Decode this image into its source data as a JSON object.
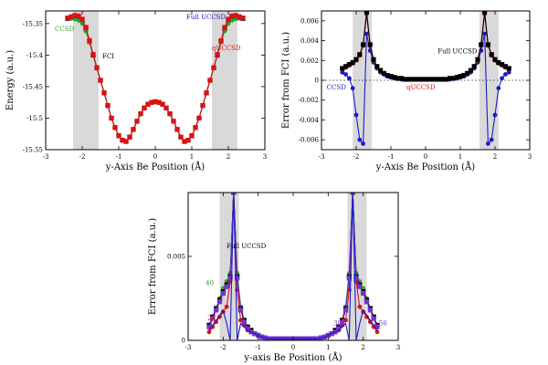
{
  "chart_data": [
    {
      "id": "a",
      "type": "line",
      "xlabel": "y-Axis Be Position (Å)",
      "ylabel": "Energy (a.u.)",
      "xlim": [
        -3,
        3
      ],
      "ylim": [
        -15.55,
        -15.33
      ],
      "xticks": [
        -3,
        -2,
        -1,
        0,
        1,
        2,
        3
      ],
      "yticks": [
        -15.55,
        -15.5,
        -15.45,
        -15.4,
        -15.35
      ],
      "ytick_labels": [
        "-15.55",
        "-15.5",
        "-15.45",
        "-15.4",
        "-15.35"
      ],
      "shaded_x": [
        [
          -2.25,
          -1.55
        ],
        [
          1.55,
          2.25
        ]
      ],
      "x": [
        -2.4,
        -2.3,
        -2.2,
        -2.1,
        -2.0,
        -1.9,
        -1.8,
        -1.7,
        -1.6,
        -1.5,
        -1.4,
        -1.3,
        -1.2,
        -1.1,
        -1.0,
        -0.9,
        -0.8,
        -0.7,
        -0.6,
        -0.5,
        -0.4,
        -0.3,
        -0.2,
        -0.1,
        0.0,
        0.1,
        0.2,
        0.3,
        0.4,
        0.5,
        0.6,
        0.7,
        0.8,
        0.9,
        1.0,
        1.1,
        1.2,
        1.3,
        1.4,
        1.5,
        1.6,
        1.7,
        1.8,
        1.9,
        2.0,
        2.1,
        2.2,
        2.3,
        2.4
      ],
      "series": [
        {
          "name": "FCI",
          "color": "#000000",
          "marker": "square",
          "values": [
            -15.342,
            -15.34,
            -15.338,
            -15.339,
            -15.345,
            -15.358,
            -15.378,
            -15.4,
            -15.42,
            -15.44,
            -15.46,
            -15.48,
            -15.5,
            -15.515,
            -15.528,
            -15.535,
            -15.537,
            -15.53,
            -15.518,
            -15.505,
            -15.493,
            -15.484,
            -15.478,
            -15.475,
            -15.474,
            -15.475,
            -15.478,
            -15.484,
            -15.493,
            -15.505,
            -15.518,
            -15.53,
            -15.537,
            -15.535,
            -15.528,
            -15.515,
            -15.5,
            -15.48,
            -15.46,
            -15.44,
            -15.42,
            -15.4,
            -15.378,
            -15.358,
            -15.345,
            -15.339,
            -15.338,
            -15.34,
            -15.342
          ]
        },
        {
          "name": "CCSD",
          "color": "#22aa22",
          "marker": "circle",
          "values": [
            -15.342,
            -15.342,
            -15.343,
            -15.345,
            -15.35,
            -15.362,
            -15.38,
            -15.4,
            -15.42,
            -15.44,
            -15.46,
            -15.48,
            -15.5,
            -15.515,
            -15.528,
            -15.535,
            -15.537,
            -15.53,
            -15.518,
            -15.505,
            -15.493,
            -15.484,
            -15.478,
            -15.475,
            -15.474,
            -15.475,
            -15.478,
            -15.484,
            -15.493,
            -15.505,
            -15.518,
            -15.53,
            -15.537,
            -15.535,
            -15.528,
            -15.515,
            -15.5,
            -15.48,
            -15.46,
            -15.44,
            -15.42,
            -15.4,
            -15.38,
            -15.362,
            -15.35,
            -15.345,
            -15.343,
            -15.342,
            -15.342
          ]
        },
        {
          "name": "Full UCCSD",
          "color": "#1a1acc",
          "marker": "circle",
          "values": [
            -15.342,
            -15.34,
            -15.338,
            -15.339,
            -15.344,
            -15.356,
            -15.377,
            -15.4,
            -15.42,
            -15.44,
            -15.46,
            -15.48,
            -15.5,
            -15.515,
            -15.528,
            -15.535,
            -15.537,
            -15.53,
            -15.518,
            -15.505,
            -15.493,
            -15.484,
            -15.478,
            -15.475,
            -15.474,
            -15.475,
            -15.478,
            -15.484,
            -15.493,
            -15.505,
            -15.518,
            -15.53,
            -15.537,
            -15.535,
            -15.528,
            -15.515,
            -15.5,
            -15.48,
            -15.46,
            -15.44,
            -15.42,
            -15.4,
            -15.377,
            -15.356,
            -15.344,
            -15.339,
            -15.338,
            -15.34,
            -15.342
          ]
        },
        {
          "name": "qUCCSD",
          "color": "#dd1111",
          "marker": "square",
          "values": [
            -15.341,
            -15.339,
            -15.337,
            -15.338,
            -15.343,
            -15.356,
            -15.377,
            -15.399,
            -15.42,
            -15.44,
            -15.46,
            -15.48,
            -15.5,
            -15.515,
            -15.528,
            -15.535,
            -15.537,
            -15.53,
            -15.518,
            -15.505,
            -15.493,
            -15.484,
            -15.478,
            -15.475,
            -15.474,
            -15.475,
            -15.478,
            -15.484,
            -15.493,
            -15.505,
            -15.518,
            -15.53,
            -15.537,
            -15.535,
            -15.528,
            -15.515,
            -15.5,
            -15.48,
            -15.46,
            -15.44,
            -15.42,
            -15.399,
            -15.377,
            -15.356,
            -15.343,
            -15.338,
            -15.337,
            -15.339,
            -15.341
          ]
        }
      ],
      "annotations": [
        {
          "text": "CCSD",
          "color": "#22aa22",
          "x": -2.75,
          "y": -15.362
        },
        {
          "text": "FCI",
          "color": "#000000",
          "x": -1.45,
          "y": -15.405
        },
        {
          "text": "Full UCCSD",
          "color": "#1a1acc",
          "x": 0.85,
          "y": -15.343
        },
        {
          "text": "qUCCSD",
          "color": "#dd1111",
          "x": 1.55,
          "y": -15.392
        }
      ]
    },
    {
      "id": "b",
      "type": "line",
      "xlabel": "y-Axis Be Position (Å)",
      "ylabel": "Error from FCI (a.u.)",
      "xlim": [
        -3,
        3
      ],
      "ylim": [
        -0.007,
        0.007
      ],
      "xticks": [
        -3,
        -2,
        -1,
        0,
        1,
        2,
        3
      ],
      "yticks": [
        -0.006,
        -0.004,
        -0.002,
        0,
        0.002,
        0.004,
        0.006
      ],
      "ytick_labels": [
        "-0.006",
        "-0.004",
        "-0.002",
        "0",
        "0.002",
        "0.004",
        "0.006"
      ],
      "shaded_x": [
        [
          -2.1,
          -1.55
        ],
        [
          1.55,
          2.1
        ]
      ],
      "x": [
        -2.4,
        -2.3,
        -2.2,
        -2.1,
        -2.0,
        -1.9,
        -1.8,
        -1.7,
        -1.6,
        -1.5,
        -1.4,
        -1.3,
        -1.2,
        -1.1,
        -1.0,
        -0.9,
        -0.8,
        -0.7,
        -0.6,
        -0.5,
        -0.4,
        -0.3,
        -0.2,
        -0.1,
        0.0,
        0.1,
        0.2,
        0.3,
        0.4,
        0.5,
        0.6,
        0.7,
        0.8,
        0.9,
        1.0,
        1.1,
        1.2,
        1.3,
        1.4,
        1.5,
        1.6,
        1.7,
        1.8,
        1.9,
        2.0,
        2.1,
        2.2,
        2.3,
        2.4
      ],
      "series": [
        {
          "name": "Full UCCSD",
          "color": "#1a1acc",
          "marker": "circle",
          "values": [
            0.0008,
            0.0006,
            0.0002,
            -0.0008,
            -0.0035,
            -0.006,
            -0.0064,
            0.0047,
            0.003,
            0.0018,
            0.0012,
            0.0008,
            0.0006,
            0.0004,
            0.0003,
            0.0002,
            0.00015,
            0.0001,
            0.0001,
            0.0001,
            0.0001,
            0.0001,
            0.0001,
            0.0001,
            0.0001,
            0.0001,
            0.0001,
            0.0001,
            0.0001,
            0.0001,
            0.0001,
            0.0001,
            0.00015,
            0.0002,
            0.0003,
            0.0004,
            0.0006,
            0.0008,
            0.0012,
            0.0018,
            0.003,
            0.0047,
            -0.0064,
            -0.006,
            -0.0035,
            -0.0008,
            0.0002,
            0.0006,
            0.0008
          ]
        },
        {
          "name": "qUCCSD",
          "color": "#dd1111",
          "marker": "circle",
          "values": [
            0.0011,
            0.0013,
            0.0015,
            0.0017,
            0.002,
            0.0025,
            0.0035,
            0.0067,
            0.0035,
            0.002,
            0.0013,
            0.0009,
            0.0007,
            0.0005,
            0.0004,
            0.0003,
            0.0002,
            0.0002,
            0.0001,
            0.0001,
            0.0001,
            0.0001,
            0.0001,
            0.0001,
            0.0001,
            0.0001,
            0.0001,
            0.0001,
            0.0001,
            0.0001,
            0.0001,
            0.0002,
            0.0002,
            0.0003,
            0.0004,
            0.0005,
            0.0007,
            0.0009,
            0.0013,
            0.002,
            0.0035,
            0.0067,
            0.0035,
            0.0025,
            0.002,
            0.0017,
            0.0015,
            0.0013,
            0.0011
          ]
        },
        {
          "name": "reference",
          "color": "#000000",
          "marker": "square",
          "values": [
            0.0012,
            0.0014,
            0.0016,
            0.0018,
            0.0021,
            0.0026,
            0.0036,
            0.0069,
            0.0036,
            0.0021,
            0.0014,
            0.001,
            0.0007,
            0.0005,
            0.0004,
            0.0003,
            0.0002,
            0.0002,
            0.0001,
            0.0001,
            0.0001,
            0.0001,
            0.0001,
            0.0001,
            0.0001,
            0.0001,
            0.0001,
            0.0001,
            0.0001,
            0.0001,
            0.0001,
            0.0002,
            0.0002,
            0.0003,
            0.0004,
            0.0005,
            0.0007,
            0.001,
            0.0014,
            0.0021,
            0.0036,
            0.0069,
            0.0036,
            0.0026,
            0.0021,
            0.0018,
            0.0016,
            0.0014,
            0.0012
          ]
        }
      ],
      "annotations": [
        {
          "text": "CCSD",
          "color": "#1a1acc",
          "x": -2.85,
          "y": -0.0009
        },
        {
          "text": "qUCCSD",
          "color": "#dd1111",
          "x": -0.55,
          "y": -0.0009
        },
        {
          "text": "Full UCCSD",
          "color": "#000000",
          "x": 0.35,
          "y": 0.0027
        }
      ]
    },
    {
      "id": "c",
      "type": "line",
      "xlabel": "y-axis Be Position (Å)",
      "ylabel": "Error from FCI (a.u.)",
      "xlim": [
        -3,
        3
      ],
      "ylim": [
        0,
        0.0088
      ],
      "xticks": [
        -3,
        -2,
        -1,
        0,
        1,
        2,
        3
      ],
      "yticks": [
        0,
        0.005
      ],
      "ytick_labels": [
        "0",
        "0.005"
      ],
      "shaded_x": [
        [
          -2.1,
          -1.55
        ],
        [
          1.55,
          2.1
        ]
      ],
      "x": [
        -2.4,
        -2.3,
        -2.2,
        -2.1,
        -2.0,
        -1.9,
        -1.8,
        -1.7,
        -1.6,
        -1.5,
        -1.4,
        -1.3,
        -1.2,
        -1.1,
        -1.0,
        -0.9,
        -0.8,
        -0.7,
        -0.6,
        -0.5,
        -0.4,
        -0.3,
        -0.2,
        -0.1,
        0.0,
        0.1,
        0.2,
        0.3,
        0.4,
        0.5,
        0.6,
        0.7,
        0.8,
        0.9,
        1.0,
        1.1,
        1.2,
        1.3,
        1.4,
        1.5,
        1.6,
        1.7,
        1.8,
        1.9,
        2.0,
        2.1,
        2.2,
        2.3,
        2.4
      ],
      "series": [
        {
          "name": "40",
          "color": "#22aa22",
          "marker": "circle",
          "values": [
            0.0008,
            0.0013,
            0.0019,
            0.0025,
            0.0031,
            0.0035,
            0.004,
            0.0088,
            0.004,
            0.002,
            0.0012,
            0.0008,
            0.0006,
            0.0004,
            0.0003,
            0.0002,
            0.00015,
            0.0001,
            0.0001,
            0.0001,
            0.0001,
            0.0001,
            0.0001,
            0.0001,
            0.0001,
            0.0001,
            0.0001,
            0.0001,
            0.0001,
            0.0001,
            0.0001,
            0.0001,
            0.00015,
            0.0002,
            0.0003,
            0.0004,
            0.0006,
            0.0008,
            0.0012,
            0.002,
            0.004,
            0.0088,
            0.004,
            0.0035,
            0.0031,
            0.0025,
            0.0019,
            0.0013,
            0.0008
          ]
        },
        {
          "name": "20",
          "color": "#dd1111",
          "marker": "circle",
          "values": [
            0.0005,
            0.0008,
            0.0011,
            0.0014,
            0.0017,
            0.002,
            0.0035,
            0.0088,
            0.003,
            0.0012,
            0.0009,
            0.0006,
            0.0005,
            0.0004,
            0.0003,
            0.0002,
            0.00015,
            0.0001,
            0.0001,
            0.0001,
            0.0001,
            0.0001,
            0.0001,
            0.0001,
            0.0001,
            0.0001,
            0.0001,
            0.0001,
            0.0001,
            0.0001,
            0.0001,
            0.0001,
            0.00015,
            0.0002,
            0.0003,
            0.0004,
            0.0005,
            0.0006,
            0.0009,
            0.0012,
            0.003,
            0.0088,
            0.0035,
            0.002,
            0.0017,
            0.0014,
            0.0011,
            0.0008,
            0.0005
          ]
        },
        {
          "name": "Full UCCSD",
          "color": "#000000",
          "marker": "square",
          "values": [
            0.0009,
            0.0014,
            0.0019,
            0.0024,
            0.0029,
            0.0033,
            0.0038,
            0.0088,
            0.0038,
            0.0019,
            0.0012,
            0.0008,
            0.0006,
            0.0004,
            0.0003,
            0.0002,
            0.00015,
            0.0001,
            0.0001,
            0.0001,
            0.0001,
            0.0001,
            0.0001,
            0.0001,
            0.0001,
            0.0001,
            0.0001,
            0.0001,
            0.0001,
            0.0001,
            0.0001,
            0.0001,
            0.00015,
            0.0002,
            0.0003,
            0.0004,
            0.0006,
            0.0008,
            0.0012,
            0.0019,
            0.0038,
            0.0088,
            0.0038,
            0.0033,
            0.0029,
            0.0024,
            0.0019,
            0.0014,
            0.0009
          ]
        },
        {
          "name": "56",
          "color": "#7733cc",
          "marker": "square",
          "values": [
            0.0008,
            0.0013,
            0.0018,
            0.0023,
            0.0028,
            0.0032,
            0.0037,
            0.0088,
            0.0037,
            0.0018,
            0.0011,
            0.0007,
            0.0005,
            0.0004,
            0.0003,
            0.0002,
            0.00015,
            0.0001,
            0.0001,
            0.0001,
            0.0001,
            0.0001,
            0.0001,
            0.0001,
            0.0001,
            0.0001,
            0.0001,
            0.0001,
            0.0001,
            0.0001,
            0.0001,
            0.0001,
            0.00015,
            0.0002,
            0.0003,
            0.0004,
            0.0005,
            0.0007,
            0.0011,
            0.0018,
            0.0037,
            0.0088,
            0.0037,
            0.0032,
            0.0028,
            0.0023,
            0.0018,
            0.0013,
            0.0008
          ]
        },
        {
          "name": "30",
          "color": "#1a1acc",
          "marker": "none",
          "values": [
            0.0006,
            0.0009,
            0.0012,
            0.0015,
            0.0018,
            0.001,
            0.0,
            0.0088,
            0.0,
            0.001,
            0.0008,
            0.0006,
            0.0005,
            0.0004,
            0.0003,
            0.0002,
            0.00015,
            0.0001,
            0.0001,
            0.0001,
            0.0001,
            0.0001,
            0.0001,
            0.0001,
            0.0001,
            0.0001,
            0.0001,
            0.0001,
            0.0001,
            0.0001,
            0.0001,
            0.0001,
            0.00015,
            0.0002,
            0.0003,
            0.0004,
            0.0005,
            0.0006,
            0.0008,
            0.001,
            0.0,
            0.0088,
            0.0,
            0.001,
            0.0018,
            0.0015,
            0.0012,
            0.0009,
            0.0006
          ]
        }
      ],
      "annotations": [
        {
          "text": "Full UCCSD",
          "color": "#000000",
          "x": -1.9,
          "y": 0.0055
        },
        {
          "text": "40",
          "color": "#22aa22",
          "x": -2.5,
          "y": 0.0033
        },
        {
          "text": "20",
          "color": "#dd1111",
          "x": -2.45,
          "y": 0.0012
        },
        {
          "text": "30",
          "color": "#7733cc",
          "x": 1.15,
          "y": 0.0009
        },
        {
          "text": "56",
          "color": "#7733cc",
          "x": 2.45,
          "y": 0.0009
        }
      ]
    }
  ]
}
